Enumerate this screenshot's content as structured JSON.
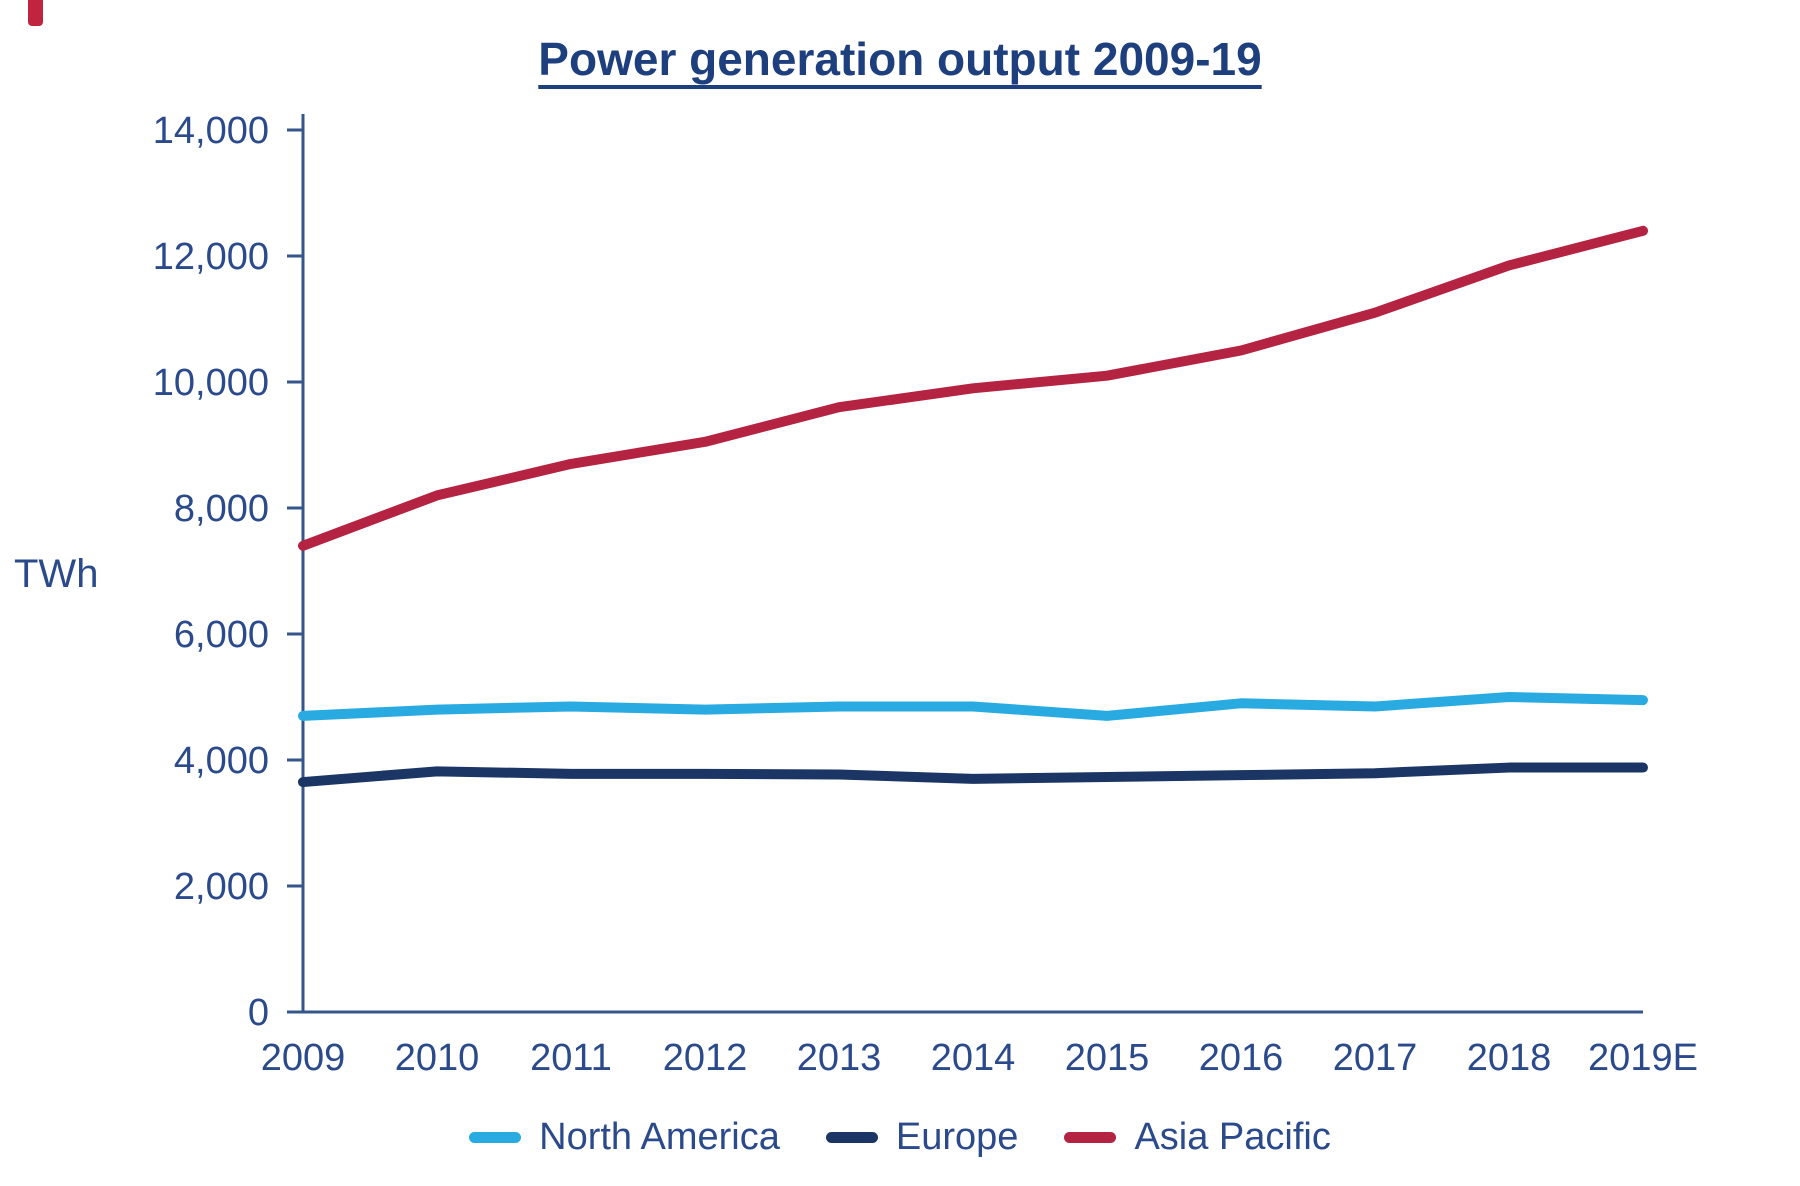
{
  "logo_mark_color": "#C0243F",
  "chart_data": {
    "type": "line",
    "title": "Power generation output 2009-19",
    "ylabel": "TWh",
    "xlabel": "",
    "categories": [
      "2009",
      "2010",
      "2011",
      "2012",
      "2013",
      "2014",
      "2015",
      "2016",
      "2017",
      "2018",
      "2019E"
    ],
    "series": [
      {
        "name": "North America",
        "color": "#29ABE2",
        "values": [
          4700,
          4800,
          4850,
          4800,
          4850,
          4850,
          4700,
          4900,
          4850,
          5000,
          4950
        ]
      },
      {
        "name": "Europe",
        "color": "#1B3665",
        "values": [
          3650,
          3820,
          3780,
          3780,
          3770,
          3700,
          3730,
          3760,
          3790,
          3880,
          3880
        ]
      },
      {
        "name": "Asia Pacific",
        "color": "#B42342",
        "values": [
          7400,
          8200,
          8700,
          9050,
          9600,
          9900,
          10100,
          10500,
          11100,
          11850,
          12400
        ]
      }
    ],
    "ylim": [
      0,
      14000
    ],
    "ytick_step": 2000,
    "ytick_labels": [
      "0",
      "2,000",
      "4,000",
      "6,000",
      "8,000",
      "10,000",
      "12,000",
      "14,000"
    ],
    "grid": false,
    "legend_position": "bottom",
    "axis_color": "#35568A",
    "text_color": "#2A4A8C",
    "title_color": "#1E3F7E"
  }
}
